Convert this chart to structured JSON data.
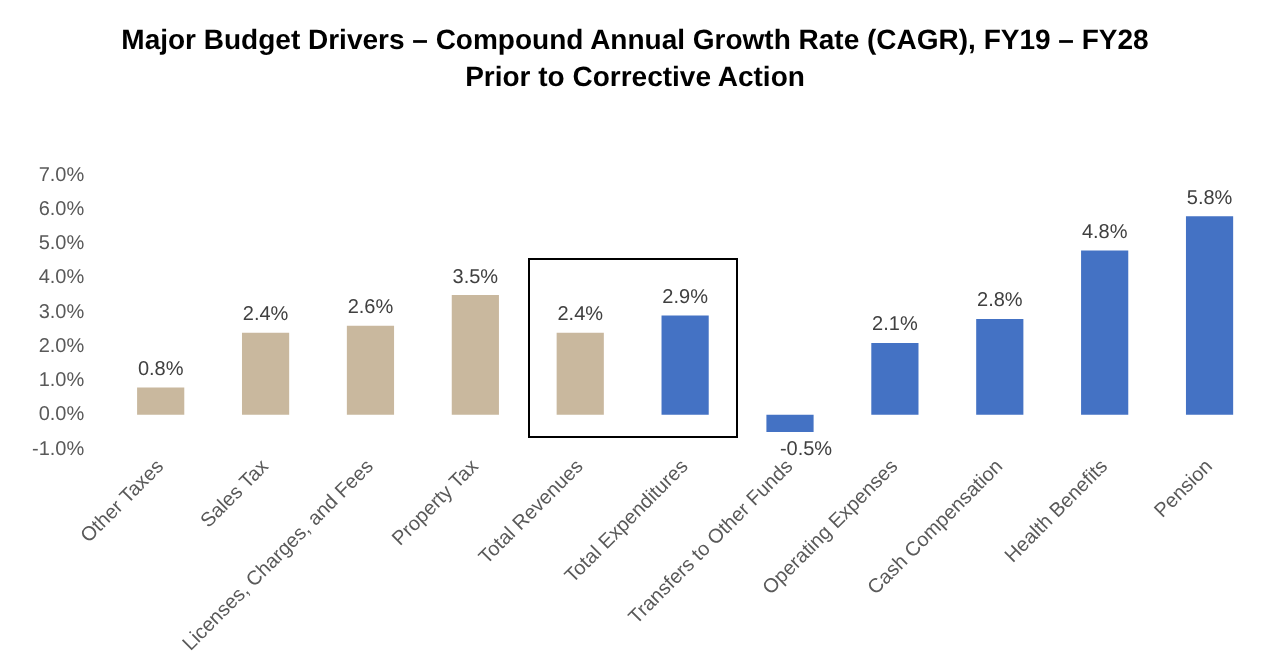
{
  "chart_data": {
    "type": "bar",
    "title": "Major Budget Drivers – Compound Annual Growth Rate (CAGR), FY19 – FY28",
    "subtitle": "Prior to Corrective Action",
    "categories": [
      "Other Taxes",
      "Sales Tax",
      "Licenses, Charges, and Fees",
      "Property Tax",
      "Total Revenues",
      "Total Expenditures",
      "Transfers to Other Funds",
      "Operating Expenses",
      "Cash Compensation",
      "Health Benefits",
      "Pension"
    ],
    "values": [
      0.8,
      2.4,
      2.6,
      3.5,
      2.4,
      2.9,
      -0.5,
      2.1,
      2.8,
      4.8,
      5.8
    ],
    "colors": [
      "#c9b89e",
      "#c9b89e",
      "#c9b89e",
      "#c9b89e",
      "#c9b89e",
      "#4472c4",
      "#4472c4",
      "#4472c4",
      "#4472c4",
      "#4472c4",
      "#4472c4"
    ],
    "value_labels": [
      "0.8%",
      "2.4%",
      "2.6%",
      "3.5%",
      "2.4%",
      "2.9%",
      "-0.5%",
      "2.1%",
      "2.8%",
      "4.8%",
      "5.8%"
    ],
    "ylim": [
      -1,
      7
    ],
    "yticks": [
      {
        "value": -1,
        "label": "-1.0%"
      },
      {
        "value": 0,
        "label": "0.0%"
      },
      {
        "value": 1,
        "label": "1.0%"
      },
      {
        "value": 2,
        "label": "2.0%"
      },
      {
        "value": 3,
        "label": "3.0%"
      },
      {
        "value": 4,
        "label": "4.0%"
      },
      {
        "value": 5,
        "label": "5.0%"
      },
      {
        "value": 6,
        "label": "6.0%"
      },
      {
        "value": 7,
        "label": "7.0%"
      }
    ],
    "grid": false,
    "legend": false
  }
}
